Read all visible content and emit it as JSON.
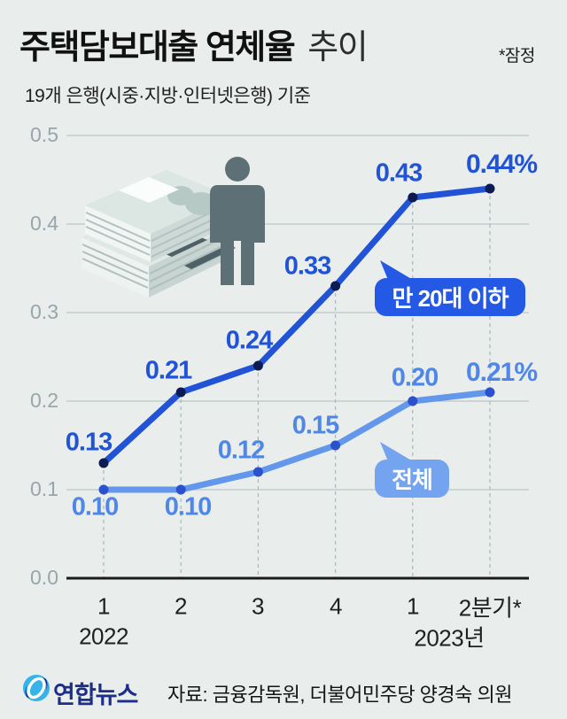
{
  "header": {
    "title_bold": "주택담보대출 연체율",
    "title_light": "추이",
    "note": "*잠정",
    "subtitle": "19개 은행(시중·지방·인터넷은행) 기준"
  },
  "chart_data": {
    "type": "line",
    "title": "주택담보대출 연체율 추이",
    "subtitle": "19개 은행(시중·지방·인터넷은행) 기준",
    "unit": "%",
    "grid": true,
    "ylim": [
      0.0,
      0.5
    ],
    "y_ticks": [
      "0.5",
      "0.4",
      "0.3",
      "0.2",
      "0.1",
      "0.0"
    ],
    "categories": [
      "1",
      "2",
      "3",
      "4",
      "1",
      "2분기*"
    ],
    "x_year_labels": [
      "2022",
      "2023년"
    ],
    "series": [
      {
        "name": "만 20대 이하",
        "values": [
          0.13,
          0.21,
          0.24,
          0.33,
          0.43,
          0.44
        ],
        "point_labels": [
          "0.13",
          "0.21",
          "0.24",
          "0.33",
          "0.43",
          "0.44%"
        ],
        "color": "#2153d6",
        "dot_color": "#0e1a52",
        "label_color": "#2153d6"
      },
      {
        "name": "전체",
        "values": [
          0.1,
          0.1,
          0.12,
          0.15,
          0.2,
          0.21
        ],
        "point_labels": [
          "0.10",
          "0.10",
          "0.12",
          "0.15",
          "0.20",
          "0.21%"
        ],
        "color": "#6397ec",
        "dot_color": "#2b51cc",
        "label_color": "#4f87e9"
      }
    ],
    "annotations": [
      {
        "text": "만 20대 이하",
        "bg": "#2459e6"
      },
      {
        "text": "전체",
        "bg": "#74a3ef"
      }
    ]
  },
  "footer": {
    "logo_text": "연합뉴스",
    "source": "자료: 금융감독원, 더불어민주당 양경숙 의원",
    "logo_color": "#36b3e9",
    "logo_navy": "#1d2e8a"
  }
}
